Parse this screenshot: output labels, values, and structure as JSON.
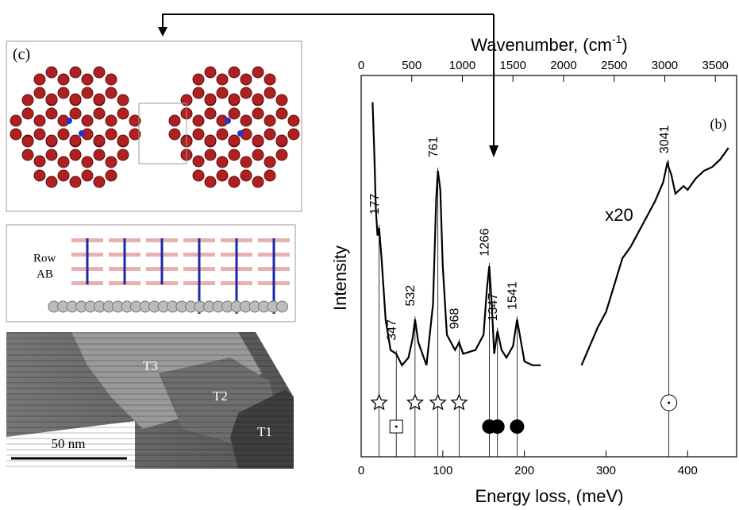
{
  "chart_data": {
    "type": "line",
    "panel_label": "(b)",
    "xlabel": "Energy loss, (meV)",
    "ylabel": "Intensity",
    "x2label": [
      "Wavenumber, (cm",
      "-1",
      ")"
    ],
    "xlim": [
      0,
      460
    ],
    "xticks": [
      0,
      100,
      200,
      300,
      400
    ],
    "x2lim": [
      0,
      3710
    ],
    "x2ticks": [
      0,
      500,
      1000,
      1500,
      2000,
      2500,
      3000,
      3500
    ],
    "ylim": [
      0,
      100
    ],
    "series": [
      {
        "color": "#000000",
        "x": [
          14,
          16,
          18,
          20,
          22,
          25,
          30,
          36,
          43,
          50,
          58,
          63,
          66,
          70,
          80,
          88,
          92,
          94,
          97,
          100,
          105,
          115,
          120,
          125,
          140,
          150,
          154,
          157,
          160,
          163,
          167,
          172,
          178,
          186,
          191,
          196,
          200,
          210,
          220
        ],
        "values": [
          93,
          80,
          65,
          58,
          60,
          52,
          36,
          28,
          27,
          24,
          26,
          31,
          36,
          30,
          24,
          40,
          68,
          75,
          70,
          50,
          32,
          28,
          30,
          27,
          28,
          32,
          44,
          50,
          40,
          27,
          33,
          28,
          26,
          29,
          36,
          30,
          25,
          24,
          24
        ]
      },
      {
        "color": "#000000",
        "x": [
          270,
          280,
          290,
          300,
          310,
          320,
          330,
          340,
          350,
          360,
          370,
          375,
          380,
          385,
          390,
          395,
          400,
          410,
          420,
          430,
          440,
          450
        ],
        "values": [
          24,
          29,
          34,
          38,
          45,
          52,
          55,
          59,
          63,
          67,
          72,
          77,
          74,
          69,
          70,
          71,
          70,
          73,
          75,
          76,
          78,
          81
        ]
      }
    ],
    "scale_label": "x20",
    "peak_labels": [
      {
        "label": "177",
        "x": 22
      },
      {
        "label": "347",
        "x": 43
      },
      {
        "label": "532",
        "x": 66
      },
      {
        "label": "761",
        "x": 94
      },
      {
        "label": "968",
        "x": 120
      },
      {
        "label": "1266",
        "x": 157
      },
      {
        "label": "1347",
        "x": 167
      },
      {
        "label": "1541",
        "x": 191
      },
      {
        "label": "3041",
        "x": 377
      }
    ],
    "markers": [
      {
        "symbol": "star",
        "x": 22
      },
      {
        "symbol": "square",
        "x": 43
      },
      {
        "symbol": "star",
        "x": 66
      },
      {
        "symbol": "star",
        "x": 94
      },
      {
        "symbol": "star",
        "x": 120
      },
      {
        "symbol": "filled-circle",
        "x": 157
      },
      {
        "symbol": "filled-circle",
        "x": 167
      },
      {
        "symbol": "filled-circle",
        "x": 191
      },
      {
        "symbol": "dot-circle",
        "x": 377
      }
    ]
  },
  "panels": {
    "molecule_label": "(c)",
    "row_labels": [
      "Row",
      "AB"
    ],
    "terraces": [
      "T3",
      "T2",
      "T1"
    ],
    "scale_bar": "50 nm"
  }
}
